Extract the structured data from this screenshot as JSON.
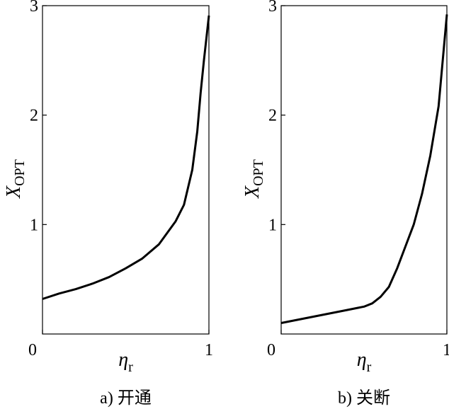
{
  "chart_data": [
    {
      "type": "line",
      "caption": "a) 开通",
      "ylabel": "X",
      "ylabel_sub": "OPT",
      "xlabel": "η",
      "xlabel_sub": "r",
      "x": [
        0,
        0.1,
        0.2,
        0.3,
        0.4,
        0.5,
        0.6,
        0.7,
        0.8,
        0.85,
        0.9,
        0.93,
        0.95,
        0.97,
        1.0
      ],
      "series": [
        {
          "name": "开通",
          "color": "#000000",
          "values": [
            0.32,
            0.37,
            0.41,
            0.46,
            0.52,
            0.6,
            0.69,
            0.82,
            1.03,
            1.18,
            1.5,
            1.85,
            2.2,
            2.5,
            2.91
          ]
        }
      ],
      "xlim": [
        0,
        1
      ],
      "ylim": [
        0,
        3
      ],
      "xticks": [
        0,
        1
      ],
      "yticks": [
        1,
        2,
        3
      ]
    },
    {
      "type": "line",
      "caption": "b) 关断",
      "ylabel": "X",
      "ylabel_sub": "OPT",
      "xlabel": "η",
      "xlabel_sub": "r",
      "x": [
        0,
        0.1,
        0.2,
        0.3,
        0.4,
        0.5,
        0.55,
        0.6,
        0.65,
        0.7,
        0.75,
        0.8,
        0.85,
        0.9,
        0.95,
        1.0
      ],
      "series": [
        {
          "name": "关断",
          "color": "#000000",
          "values": [
            0.1,
            0.13,
            0.16,
            0.19,
            0.22,
            0.25,
            0.28,
            0.34,
            0.43,
            0.6,
            0.8,
            1.0,
            1.28,
            1.63,
            2.08,
            2.92
          ]
        }
      ],
      "xlim": [
        0,
        1
      ],
      "ylim": [
        0,
        3
      ],
      "xticks": [
        0,
        1
      ],
      "yticks": [
        1,
        2,
        3
      ]
    }
  ]
}
